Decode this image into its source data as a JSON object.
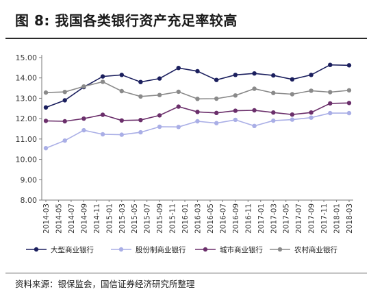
{
  "header": {
    "title": "图 8:  我国各类银行资产充足率较高"
  },
  "footer": {
    "source": "资料来源：银保监会，国信证券经济研究所整理"
  },
  "chart_data": {
    "type": "line",
    "title": "图 8:  我国各类银行资产充足率较高",
    "xlabel": "",
    "ylabel": "",
    "ylim": [
      8.0,
      15.0
    ],
    "yticks": [
      "8.00",
      "9.00",
      "10.00",
      "11.00",
      "12.00",
      "13.00",
      "14.00",
      "15.00"
    ],
    "grid": false,
    "legend_position": "bottom",
    "categories": [
      "2014-03",
      "2014-05",
      "2014-07",
      "2014-09",
      "2014-11",
      "2015-01",
      "2015-03",
      "2015-05",
      "2015-07",
      "2015-09",
      "2015-11",
      "2016-01",
      "2016-03",
      "2016-05",
      "2016-07",
      "2016-09",
      "2016-11",
      "2017-01",
      "2017-03",
      "2017-05",
      "2017-07",
      "2017-09",
      "2017-11",
      "2018-01",
      "2018-03"
    ],
    "x": [
      "2014-03",
      "2014-06",
      "2014-09",
      "2014-12",
      "2015-03",
      "2015-06",
      "2015-09",
      "2015-12",
      "2016-03",
      "2016-06",
      "2016-09",
      "2016-12",
      "2017-03",
      "2017-06",
      "2017-09",
      "2017-12",
      "2018-03"
    ],
    "series": [
      {
        "name": "大型商业银行",
        "color": "#1b1f5e",
        "values": [
          12.55,
          12.9,
          13.55,
          14.07,
          14.15,
          13.8,
          13.97,
          14.49,
          14.33,
          13.9,
          14.15,
          14.22,
          14.12,
          13.93,
          14.15,
          14.64,
          14.62
        ]
      },
      {
        "name": "股份制商业银行",
        "color": "#a9aee6",
        "values": [
          10.55,
          10.92,
          11.43,
          11.23,
          11.21,
          11.33,
          11.6,
          11.59,
          11.87,
          11.78,
          11.94,
          11.64,
          11.9,
          11.95,
          12.05,
          12.27,
          12.27
        ]
      },
      {
        "name": "城市商业银行",
        "color": "#6b2f6b",
        "values": [
          11.89,
          11.87,
          12.0,
          12.19,
          11.91,
          11.93,
          12.16,
          12.59,
          12.33,
          12.28,
          12.39,
          12.41,
          12.3,
          12.2,
          12.3,
          12.75,
          12.77
        ]
      },
      {
        "name": "农村商业银行",
        "color": "#8a8a8a",
        "values": [
          13.28,
          13.31,
          13.58,
          13.81,
          13.35,
          13.09,
          13.16,
          13.32,
          12.97,
          12.98,
          13.14,
          13.47,
          13.26,
          13.2,
          13.37,
          13.3,
          13.39
        ]
      }
    ]
  }
}
